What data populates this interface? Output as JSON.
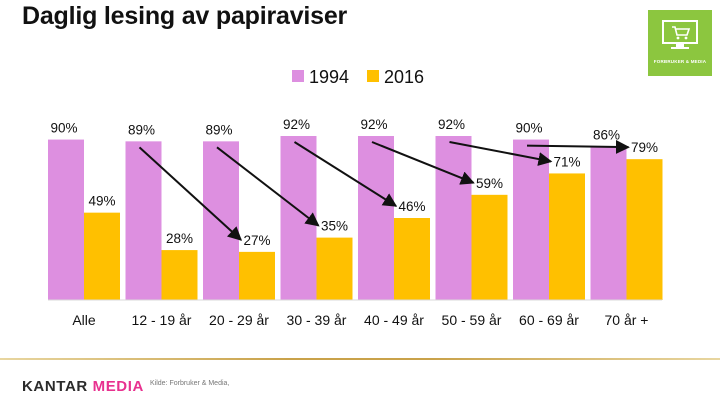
{
  "title": "Daglig lesing av papiraviser",
  "badge": {
    "text": "FORBRUKER & MEDIA",
    "icon": "monitor-cart-icon",
    "color": "#8cc63f"
  },
  "footer": {
    "logo_part1": "KANTAR",
    "logo_part2": "MEDIA",
    "source": "Kilde: Forbruker & Media,"
  },
  "chart_data": {
    "type": "bar",
    "title": "Daglig lesing av papiraviser",
    "categories": [
      "Alle",
      "12 - 19 år",
      "20 - 29 år",
      "30 - 39 år",
      "40 - 49 år",
      "50 - 59 år",
      "60 - 69 år",
      "70 år +"
    ],
    "series": [
      {
        "name": "1994",
        "color": "#dd8fe0",
        "values": [
          90,
          89,
          89,
          92,
          92,
          92,
          90,
          86
        ],
        "labels": [
          "90%",
          "89%",
          "89%",
          "92%",
          "92%",
          "92%",
          "90%",
          "86%"
        ]
      },
      {
        "name": "2016",
        "color": "#ffc000",
        "values": [
          49,
          28,
          27,
          35,
          46,
          59,
          71,
          79
        ],
        "labels": [
          "49%",
          "28%",
          "27%",
          "35%",
          "46%",
          "59%",
          "71%",
          "79%"
        ]
      }
    ],
    "ylim": [
      0,
      92
    ],
    "xlabel": "",
    "ylabel": "",
    "legend": "top-center",
    "annotations": "arrows from each 1994 bar to the 2016 bar of the next age group"
  }
}
